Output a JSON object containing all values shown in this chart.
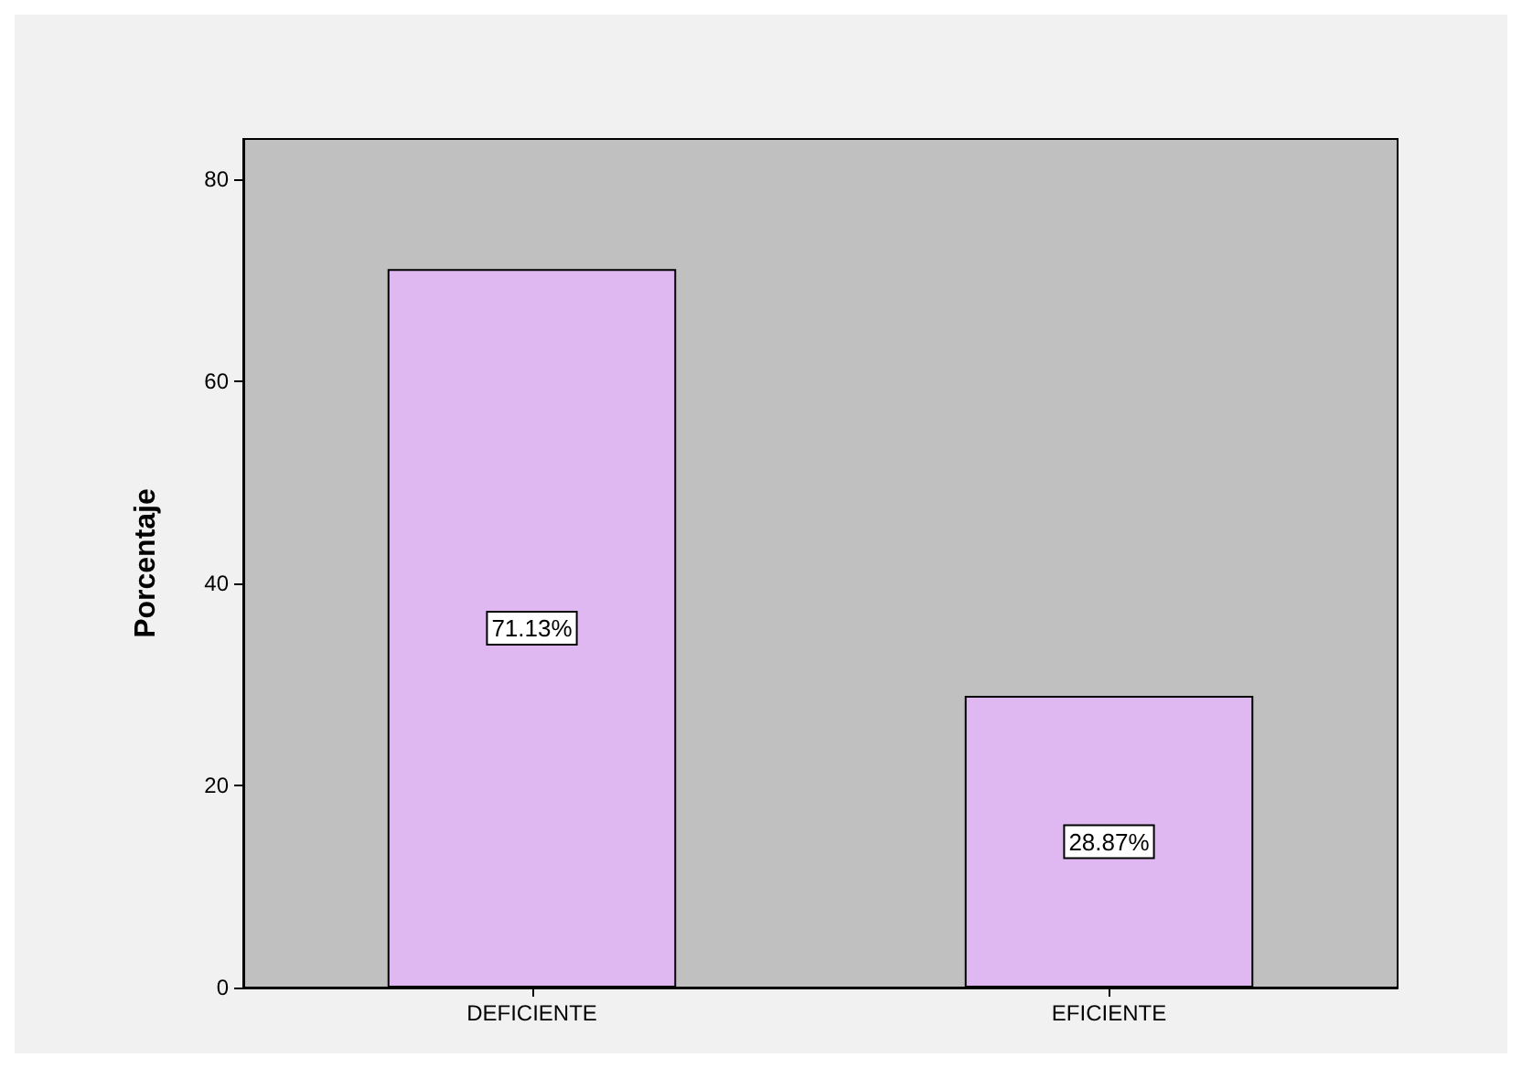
{
  "chart_data": {
    "type": "bar",
    "ylabel": "Porcentaje",
    "categories": [
      "DEFICIENTE",
      "EFICIENTE"
    ],
    "values": [
      71.13,
      28.87
    ],
    "value_labels": [
      "71.13%",
      "28.87%"
    ],
    "color": "#dfb8f2",
    "ylim": [
      0,
      84
    ],
    "yticks": [
      0,
      20,
      40,
      60,
      80
    ],
    "grid": false
  }
}
